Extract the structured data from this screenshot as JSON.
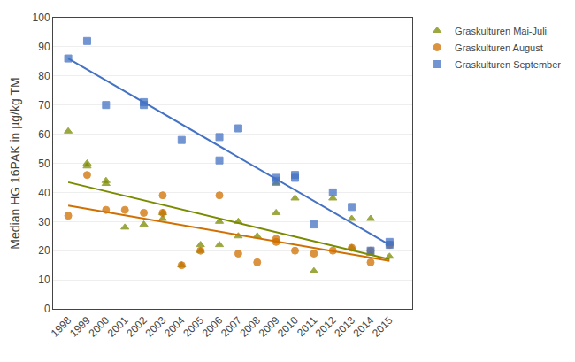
{
  "chart_data": {
    "type": "scatter",
    "title": "",
    "ylabel": "Median HG 16PAK in µg/kg TM",
    "xlim": [
      1997.2,
      2016.2
    ],
    "xticks": [
      1998,
      1999,
      2000,
      2001,
      2002,
      2003,
      2004,
      2005,
      2006,
      2007,
      2008,
      2009,
      2010,
      2011,
      2012,
      2013,
      2014,
      2015
    ],
    "ylim": [
      0,
      100
    ],
    "yticks": [
      0,
      10,
      20,
      30,
      40,
      50,
      60,
      70,
      80,
      90,
      100
    ],
    "grid": "y",
    "legend": "upper right",
    "series": [
      {
        "name": "Graskulturen Mai-Juli",
        "color": "#7B8B00",
        "marker": "triangle-up",
        "x": [
          1998,
          1999,
          1999,
          2000,
          2000,
          2001,
          2002,
          2003,
          2003,
          2004,
          2005,
          2005,
          2006,
          2006,
          2007,
          2007,
          2008,
          2009,
          2009,
          2010,
          2011,
          2012,
          2013,
          2013,
          2014,
          2014,
          2015
        ],
        "values": [
          61,
          50,
          49,
          44,
          43,
          28,
          29,
          33,
          31,
          15,
          20,
          22,
          22,
          30,
          30,
          25,
          25,
          33,
          43,
          38,
          13,
          38,
          31,
          21,
          19,
          31,
          18
        ],
        "trend_x": [
          1998,
          2015
        ],
        "trend_y": [
          43.5,
          17.0
        ]
      },
      {
        "name": "Graskulturen August",
        "color": "#D07000",
        "marker": "circle",
        "x": [
          1998,
          1999,
          2000,
          2001,
          2002,
          2003,
          2003,
          2004,
          2005,
          2006,
          2007,
          2008,
          2009,
          2009,
          2010,
          2011,
          2012,
          2013,
          2014,
          2014,
          2015
        ],
        "values": [
          32,
          46,
          34,
          34,
          33,
          33,
          39,
          15,
          20,
          39,
          19,
          16,
          23,
          24,
          20,
          19,
          20,
          21,
          16,
          20,
          22
        ],
        "trend_x": [
          1998,
          2015
        ],
        "trend_y": [
          35.5,
          16.5
        ]
      },
      {
        "name": "Graskulturen September",
        "color": "#4472C4",
        "marker": "square",
        "x": [
          1998,
          1999,
          2000,
          2002,
          2002,
          2004,
          2006,
          2006,
          2007,
          2009,
          2009,
          2010,
          2010,
          2011,
          2012,
          2013,
          2014,
          2015,
          2015
        ],
        "values": [
          86,
          92,
          70,
          71,
          70,
          58,
          51,
          59,
          62,
          45,
          44,
          46,
          45,
          29,
          40,
          35,
          20,
          23,
          22
        ],
        "trend_x": [
          1998,
          2015
        ],
        "trend_y": [
          86.0,
          22.0
        ]
      }
    ]
  }
}
